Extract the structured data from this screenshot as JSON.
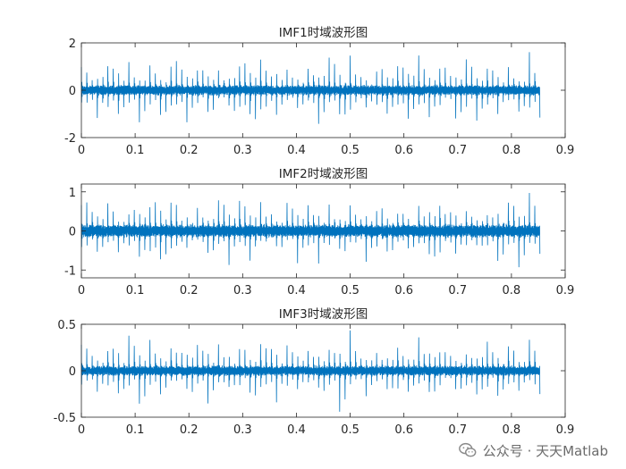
{
  "chart_data": [
    {
      "type": "line",
      "title": "IMF1时域波形图",
      "xlim": [
        0,
        0.9
      ],
      "ylim": [
        -2,
        2
      ],
      "xticks": [
        0,
        0.1,
        0.2,
        0.3,
        0.4,
        0.5,
        0.6,
        0.7,
        0.8,
        0.9
      ],
      "yticks": [
        -2,
        0,
        2
      ],
      "x_data_range": [
        0,
        0.853
      ],
      "impulse_count": 87,
      "peak_amplitude": 1.9,
      "baseline_amplitude": 0.2,
      "color": "#0072BD",
      "grid": false
    },
    {
      "type": "line",
      "title": "IMF2时域波形图",
      "xlim": [
        0,
        0.9
      ],
      "ylim": [
        -1.2,
        1.2
      ],
      "xticks": [
        0,
        0.1,
        0.2,
        0.3,
        0.4,
        0.5,
        0.6,
        0.7,
        0.8,
        0.9
      ],
      "yticks": [
        -1,
        0,
        1
      ],
      "x_data_range": [
        0,
        0.853
      ],
      "impulse_count": 87,
      "peak_amplitude": 1.1,
      "baseline_amplitude": 0.15,
      "color": "#0072BD",
      "grid": false
    },
    {
      "type": "line",
      "title": "IMF3时域波形图",
      "xlim": [
        0,
        0.9
      ],
      "ylim": [
        -0.5,
        0.5
      ],
      "xticks": [
        0,
        0.1,
        0.2,
        0.3,
        0.4,
        0.5,
        0.6,
        0.7,
        0.8,
        0.9
      ],
      "yticks": [
        -0.5,
        0,
        0.5
      ],
      "x_data_range": [
        0,
        0.853
      ],
      "impulse_count": 87,
      "peak_amplitude": 0.48,
      "baseline_amplitude": 0.05,
      "color": "#0072BD",
      "grid": false
    }
  ],
  "watermark": {
    "text": "公众号 · 天天Matlab",
    "icon": "wechat-icon"
  }
}
